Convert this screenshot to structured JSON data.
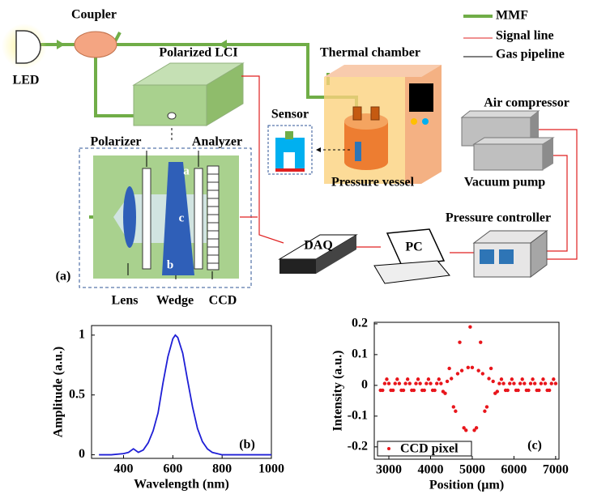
{
  "diagram": {
    "coupler": "Coupler",
    "led": "LED",
    "lci": "Polarized LCI",
    "legend": {
      "mmf": "MMF",
      "signal": "Signal line",
      "gas": "Gas pipeline"
    },
    "thermal_chamber": "Thermal chamber",
    "air_compressor": "Air compressor",
    "sensor": "Sensor",
    "pressure_vessel": "Pressure vessel",
    "vacuum_pump": "Vacuum pump",
    "pressure_controller": "Pressure controller",
    "daq": "DAQ",
    "pc": "PC",
    "polarizer": "Polarizer",
    "analyzer": "Analyzer",
    "wedge_a": "a",
    "wedge_b": "b",
    "wedge_c": "c",
    "panel_label": "(a)",
    "lens": "Lens",
    "wedge": "Wedge",
    "ccd": "CCD"
  },
  "chart_data": [
    {
      "type": "line",
      "panel_label": "(b)",
      "x_label": "Wavelength (nm)",
      "y_label": "Amplitude (a.u.)",
      "xlim": [
        270,
        1000
      ],
      "ylim": [
        -0.03,
        1.08
      ],
      "xticks": [
        400,
        600,
        800,
        1000
      ],
      "yticks": [
        0,
        0.5,
        1
      ],
      "x": [
        300,
        350,
        400,
        420,
        440,
        460,
        480,
        500,
        520,
        540,
        560,
        580,
        600,
        610,
        620,
        640,
        660,
        680,
        700,
        720,
        740,
        760,
        780,
        800,
        850,
        900,
        950,
        1000
      ],
      "series": [
        {
          "color": "#1f1fd6",
          "values": [
            0,
            0,
            0.01,
            0.02,
            0.05,
            0.02,
            0.04,
            0.1,
            0.2,
            0.35,
            0.6,
            0.82,
            0.97,
            1,
            0.98,
            0.85,
            0.62,
            0.4,
            0.22,
            0.11,
            0.05,
            0.02,
            0.01,
            0,
            0,
            0,
            0,
            0
          ]
        }
      ]
    },
    {
      "type": "scatter",
      "panel_label": "(c)",
      "x_label": "Position (µm)",
      "y_label": "Intensity (a.u.)",
      "xlim": [
        2650,
        7080
      ],
      "ylim": [
        -0.24,
        0.205
      ],
      "xticks": [
        3000,
        4000,
        5000,
        6000,
        7000
      ],
      "yticks": [
        -0.2,
        -0.1,
        0,
        0.1,
        0.2
      ],
      "legend": "lower left",
      "x": [
        2800,
        2850,
        2900,
        2950,
        3000,
        3050,
        3100,
        3150,
        3200,
        3250,
        3300,
        3350,
        3400,
        3450,
        3500,
        3550,
        3600,
        3650,
        3700,
        3750,
        3800,
        3850,
        3900,
        3950,
        4000,
        4050,
        4100,
        4150,
        4200,
        4250,
        4300,
        4350,
        4400,
        4450,
        4500,
        4550,
        4600,
        4650,
        4700,
        4750,
        4800,
        4850,
        4900,
        4950,
        5000,
        5050,
        5100,
        5150,
        5200,
        5250,
        5300,
        5350,
        5400,
        5450,
        5500,
        5550,
        5600,
        5650,
        5700,
        5750,
        5800,
        5850,
        5900,
        5950,
        6000,
        6050,
        6100,
        6150,
        6200,
        6250,
        6300,
        6350,
        6400,
        6450,
        6500,
        6550,
        6600,
        6650,
        6700,
        6750,
        6800,
        6850,
        6900,
        6950,
        7000
      ],
      "series": [
        {
          "name": "CCD pixel",
          "color": "#e8151b",
          "values": [
            -0.016,
            -0.016,
            0.006,
            0.02,
            0.006,
            -0.016,
            -0.016,
            0.006,
            0.02,
            0.006,
            -0.016,
            -0.016,
            0.006,
            0.02,
            0.006,
            -0.016,
            -0.016,
            0.006,
            0.02,
            0.006,
            -0.016,
            -0.016,
            0.006,
            0.02,
            0.006,
            -0.016,
            -0.016,
            0.006,
            0.02,
            0.006,
            -0.02,
            -0.026,
            0.013,
            0.055,
            0.022,
            -0.07,
            -0.084,
            0.038,
            0.14,
            0.048,
            -0.138,
            -0.146,
            0.058,
            0.19,
            0.058,
            -0.146,
            -0.138,
            0.048,
            0.14,
            0.038,
            -0.084,
            -0.07,
            0.022,
            0.055,
            0.013,
            -0.026,
            -0.02,
            0.006,
            0.02,
            0.006,
            -0.016,
            -0.016,
            0.006,
            0.02,
            0.006,
            -0.016,
            -0.016,
            0.006,
            0.02,
            0.006,
            -0.016,
            -0.016,
            0.006,
            0.02,
            0.006,
            -0.016,
            -0.016,
            0.006,
            0.02,
            0.006,
            -0.016,
            -0.016,
            0.006,
            0.02,
            0.006
          ]
        }
      ]
    }
  ]
}
